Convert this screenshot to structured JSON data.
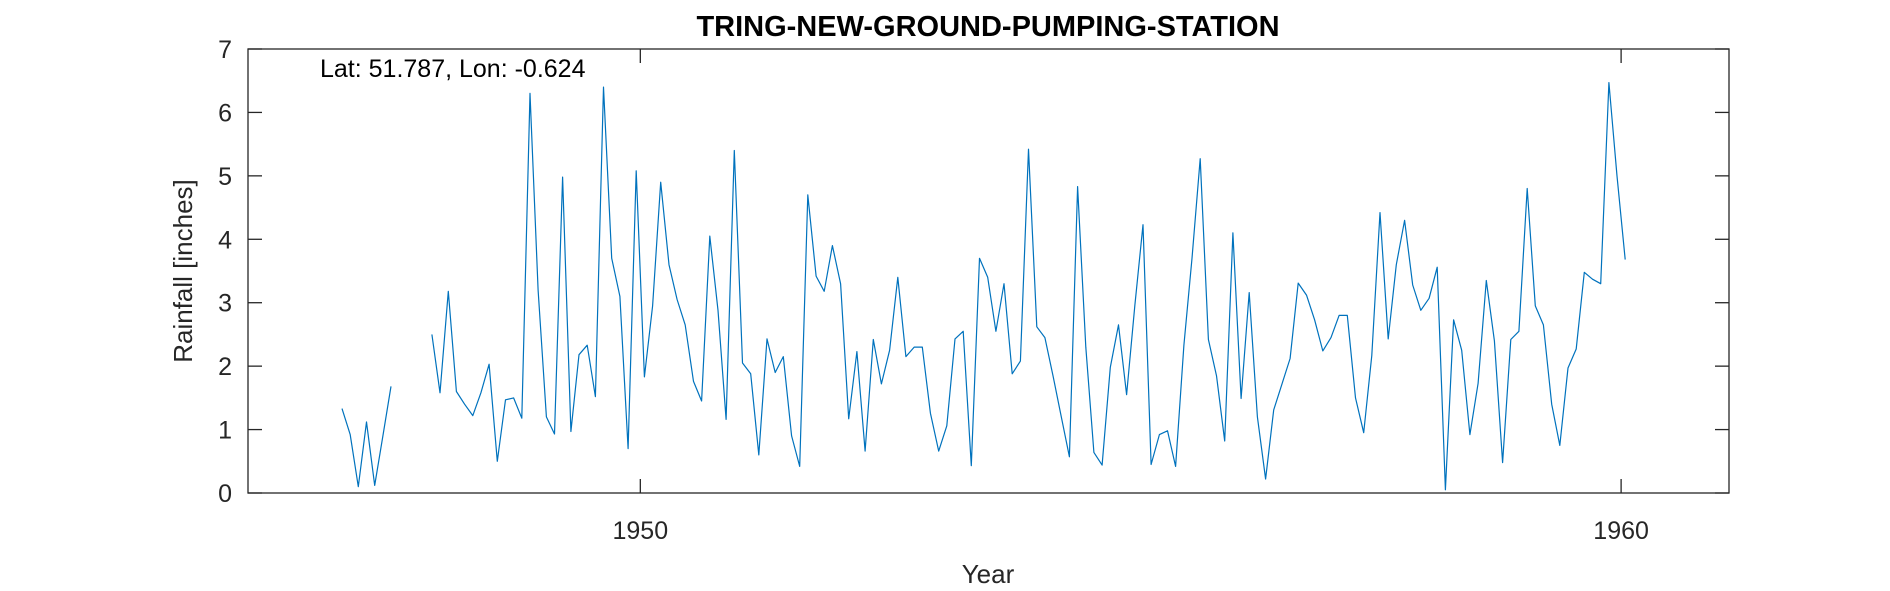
{
  "chart_data": {
    "type": "line",
    "title": "TRING-NEW-GROUND-PUMPING-STATION",
    "xlabel": "Year",
    "ylabel": "Rainfall [inches]",
    "annotation": "Lat: 51.787, Lon: -0.624",
    "xlim": [
      1946.0,
      1961.1
    ],
    "ylim": [
      0,
      7
    ],
    "xticks": [
      1950,
      1960
    ],
    "xtick_labels": [
      "1950",
      "1960"
    ],
    "yticks": [
      0,
      1,
      2,
      3,
      4,
      5,
      6,
      7
    ],
    "ytick_labels": [
      "0",
      "1",
      "2",
      "3",
      "4",
      "5",
      "6",
      "7"
    ],
    "grid": false,
    "series": [
      {
        "color": "#0072BD",
        "points": [
          [
            1946.958,
            1.33
          ],
          [
            1947.042,
            0.92
          ],
          [
            1947.125,
            0.1
          ],
          [
            1947.208,
            1.12
          ],
          [
            1947.292,
            0.12
          ],
          [
            1947.375,
            0.9
          ],
          [
            1947.458,
            1.68
          ],
          [
            1947.542,
            null
          ],
          [
            1947.625,
            null
          ],
          [
            1947.708,
            null
          ],
          [
            1947.792,
            null
          ],
          [
            1947.875,
            2.5
          ],
          [
            1947.958,
            1.58
          ],
          [
            1948.042,
            3.18
          ],
          [
            1948.125,
            1.6
          ],
          [
            1948.208,
            1.4
          ],
          [
            1948.292,
            1.22
          ],
          [
            1948.375,
            1.58
          ],
          [
            1948.458,
            2.03
          ],
          [
            1948.542,
            0.5
          ],
          [
            1948.625,
            1.47
          ],
          [
            1948.708,
            1.5
          ],
          [
            1948.792,
            1.18
          ],
          [
            1948.875,
            6.3
          ],
          [
            1948.958,
            3.2
          ],
          [
            1949.042,
            1.2
          ],
          [
            1949.125,
            0.93
          ],
          [
            1949.208,
            4.98
          ],
          [
            1949.292,
            0.97
          ],
          [
            1949.375,
            2.18
          ],
          [
            1949.458,
            2.33
          ],
          [
            1949.542,
            1.52
          ],
          [
            1949.625,
            6.4
          ],
          [
            1949.708,
            3.7
          ],
          [
            1949.792,
            3.1
          ],
          [
            1949.875,
            0.7
          ],
          [
            1949.958,
            5.08
          ],
          [
            1950.042,
            1.83
          ],
          [
            1950.125,
            2.95
          ],
          [
            1950.208,
            4.9
          ],
          [
            1950.292,
            3.6
          ],
          [
            1950.375,
            3.05
          ],
          [
            1950.458,
            2.65
          ],
          [
            1950.542,
            1.76
          ],
          [
            1950.625,
            1.45
          ],
          [
            1950.708,
            4.05
          ],
          [
            1950.792,
            2.88
          ],
          [
            1950.875,
            1.16
          ],
          [
            1950.958,
            5.4
          ],
          [
            1951.042,
            2.05
          ],
          [
            1951.125,
            1.88
          ],
          [
            1951.208,
            0.6
          ],
          [
            1951.292,
            2.43
          ],
          [
            1951.375,
            1.9
          ],
          [
            1951.458,
            2.15
          ],
          [
            1951.542,
            0.9
          ],
          [
            1951.625,
            0.42
          ],
          [
            1951.708,
            4.7
          ],
          [
            1951.792,
            3.42
          ],
          [
            1951.875,
            3.18
          ],
          [
            1951.958,
            3.9
          ],
          [
            1952.042,
            3.3
          ],
          [
            1952.125,
            1.17
          ],
          [
            1952.208,
            2.23
          ],
          [
            1952.292,
            0.66
          ],
          [
            1952.375,
            2.42
          ],
          [
            1952.458,
            1.72
          ],
          [
            1952.542,
            2.25
          ],
          [
            1952.625,
            3.4
          ],
          [
            1952.708,
            2.15
          ],
          [
            1952.792,
            2.3
          ],
          [
            1952.875,
            2.3
          ],
          [
            1952.958,
            1.26
          ],
          [
            1953.042,
            0.66
          ],
          [
            1953.125,
            1.06
          ],
          [
            1953.208,
            2.43
          ],
          [
            1953.292,
            2.55
          ],
          [
            1953.375,
            0.43
          ],
          [
            1953.458,
            3.7
          ],
          [
            1953.542,
            3.4
          ],
          [
            1953.625,
            2.55
          ],
          [
            1953.708,
            3.3
          ],
          [
            1953.792,
            1.88
          ],
          [
            1953.875,
            2.08
          ],
          [
            1953.958,
            5.42
          ],
          [
            1954.042,
            2.62
          ],
          [
            1954.125,
            2.45
          ],
          [
            1954.208,
            1.85
          ],
          [
            1954.292,
            1.2
          ],
          [
            1954.375,
            0.57
          ],
          [
            1954.458,
            4.83
          ],
          [
            1954.542,
            2.3
          ],
          [
            1954.625,
            0.64
          ],
          [
            1954.708,
            0.44
          ],
          [
            1954.792,
            1.98
          ],
          [
            1954.875,
            2.65
          ],
          [
            1954.958,
            1.55
          ],
          [
            1955.042,
            2.95
          ],
          [
            1955.125,
            4.23
          ],
          [
            1955.208,
            0.45
          ],
          [
            1955.292,
            0.92
          ],
          [
            1955.375,
            0.98
          ],
          [
            1955.458,
            0.42
          ],
          [
            1955.542,
            2.33
          ],
          [
            1955.625,
            3.7
          ],
          [
            1955.708,
            5.27
          ],
          [
            1955.792,
            2.42
          ],
          [
            1955.875,
            1.85
          ],
          [
            1955.958,
            0.82
          ],
          [
            1956.042,
            4.1
          ],
          [
            1956.125,
            1.49
          ],
          [
            1956.208,
            3.16
          ],
          [
            1956.292,
            1.2
          ],
          [
            1956.375,
            0.22
          ],
          [
            1956.458,
            1.31
          ],
          [
            1956.542,
            1.72
          ],
          [
            1956.625,
            2.12
          ],
          [
            1956.708,
            3.31
          ],
          [
            1956.792,
            3.12
          ],
          [
            1956.875,
            2.73
          ],
          [
            1956.958,
            2.24
          ],
          [
            1957.042,
            2.45
          ],
          [
            1957.125,
            2.8
          ],
          [
            1957.208,
            2.8
          ],
          [
            1957.292,
            1.5
          ],
          [
            1957.375,
            0.95
          ],
          [
            1957.458,
            2.17
          ],
          [
            1957.542,
            4.42
          ],
          [
            1957.625,
            2.43
          ],
          [
            1957.708,
            3.6
          ],
          [
            1957.792,
            4.3
          ],
          [
            1957.875,
            3.28
          ],
          [
            1957.958,
            2.88
          ],
          [
            1958.042,
            3.07
          ],
          [
            1958.125,
            3.56
          ],
          [
            1958.208,
            0.05
          ],
          [
            1958.292,
            2.73
          ],
          [
            1958.375,
            2.25
          ],
          [
            1958.458,
            0.92
          ],
          [
            1958.542,
            1.73
          ],
          [
            1958.625,
            3.35
          ],
          [
            1958.708,
            2.4
          ],
          [
            1958.792,
            0.48
          ],
          [
            1958.875,
            2.42
          ],
          [
            1958.958,
            2.55
          ],
          [
            1959.042,
            4.8
          ],
          [
            1959.125,
            2.95
          ],
          [
            1959.208,
            2.65
          ],
          [
            1959.292,
            1.4
          ],
          [
            1959.375,
            0.75
          ],
          [
            1959.458,
            1.97
          ],
          [
            1959.542,
            2.27
          ],
          [
            1959.625,
            3.48
          ],
          [
            1959.708,
            3.37
          ],
          [
            1959.792,
            3.3
          ],
          [
            1959.875,
            6.47
          ],
          [
            1959.958,
            5.0
          ],
          [
            1960.042,
            3.68
          ]
        ]
      }
    ]
  }
}
